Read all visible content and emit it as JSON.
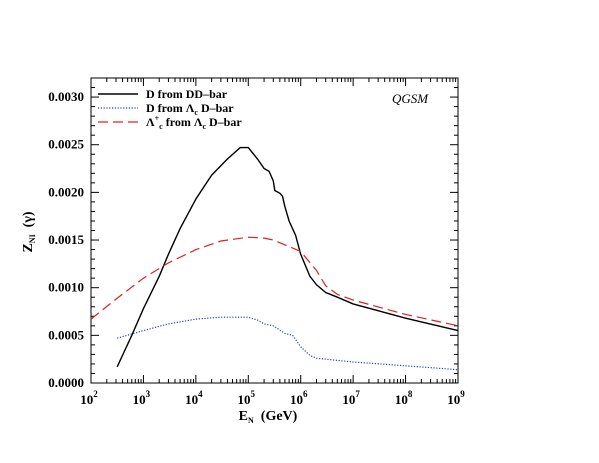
{
  "chart_data": {
    "type": "line",
    "xscale": "log",
    "xlim": [
      100,
      1000000000
    ],
    "ylim": [
      0,
      0.0032
    ],
    "xticks": [
      {
        "value": 100,
        "base": "10",
        "exp": "2"
      },
      {
        "value": 1000,
        "base": "10",
        "exp": "3"
      },
      {
        "value": 10000,
        "base": "10",
        "exp": "4"
      },
      {
        "value": 100000,
        "base": "10",
        "exp": "5"
      },
      {
        "value": 1000000,
        "base": "10",
        "exp": "6"
      },
      {
        "value": 10000000,
        "base": "10",
        "exp": "7"
      },
      {
        "value": 100000000,
        "base": "10",
        "exp": "8"
      },
      {
        "value": 1000000000,
        "base": "10",
        "exp": "9"
      }
    ],
    "yticks": [
      {
        "value": 0.0,
        "label": "0.0000"
      },
      {
        "value": 0.0005,
        "label": "0.0005"
      },
      {
        "value": 0.001,
        "label": "0.0010"
      },
      {
        "value": 0.0015,
        "label": "0.0015"
      },
      {
        "value": 0.002,
        "label": "0.0020"
      },
      {
        "value": 0.0025,
        "label": "0.0025"
      },
      {
        "value": 0.003,
        "label": "0.0030"
      }
    ],
    "xlabel": {
      "main": "E",
      "sub": "N",
      "rest": "  (GeV)"
    },
    "ylabel": {
      "main": "Z",
      "sub": "NI",
      "rest": "  (γ)"
    },
    "annotation": "QGSM",
    "legend_position": "top-left",
    "series": [
      {
        "name": "D   from  DD–bar",
        "legend": [
          {
            "t": "D   from  DD–bar"
          }
        ],
        "color": "#000000",
        "dash": "",
        "points": [
          [
            316,
            0.00017
          ],
          [
            600,
            0.0005
          ],
          [
            1000,
            0.00078
          ],
          [
            2000,
            0.00112
          ],
          [
            3000,
            0.00135
          ],
          [
            5000,
            0.00162
          ],
          [
            10000,
            0.00193
          ],
          [
            20000,
            0.00218
          ],
          [
            40000,
            0.00235
          ],
          [
            70000,
            0.00247
          ],
          [
            100000,
            0.00247
          ],
          [
            150000,
            0.00235
          ],
          [
            200000,
            0.00225
          ],
          [
            250000,
            0.00222
          ],
          [
            300000,
            0.00212
          ],
          [
            320000,
            0.00202
          ],
          [
            400000,
            0.00199
          ],
          [
            450000,
            0.00196
          ],
          [
            500000,
            0.00185
          ],
          [
            600000,
            0.0017
          ],
          [
            800000,
            0.00155
          ],
          [
            1000000,
            0.00135
          ],
          [
            1500000,
            0.00112
          ],
          [
            2000000,
            0.00103
          ],
          [
            3000000,
            0.00095
          ],
          [
            5000000,
            0.0009
          ],
          [
            10000000,
            0.00083
          ],
          [
            100000000,
            0.00068
          ],
          [
            1000000000,
            0.00055
          ]
        ]
      },
      {
        "name": "D   from  Λ c D–bar",
        "legend": [
          {
            "t": "D   from  Λ"
          },
          {
            "t": "c",
            "sub": true
          },
          {
            "t": " D–bar"
          }
        ],
        "color": "#1f3fd0",
        "dash": "1.2,1.6",
        "points": [
          [
            316,
            0.00047
          ],
          [
            1000,
            0.00055
          ],
          [
            3000,
            0.00062
          ],
          [
            10000,
            0.00067
          ],
          [
            30000,
            0.00069
          ],
          [
            100000,
            0.00069
          ],
          [
            150000,
            0.00066
          ],
          [
            200000,
            0.00062
          ],
          [
            300000,
            0.0006
          ],
          [
            500000,
            0.00052
          ],
          [
            700000,
            0.0005
          ],
          [
            1000000,
            0.00038
          ],
          [
            1500000,
            0.00029
          ],
          [
            2000000,
            0.00026
          ],
          [
            3000000,
            0.00025
          ],
          [
            10000000,
            0.00022
          ],
          [
            100000000,
            0.00018
          ],
          [
            1000000000,
            0.00014
          ]
        ]
      },
      {
        "name": "Λ + c from  Λ c D–bar",
        "legend": [
          {
            "t": "Λ"
          },
          {
            "t": "+",
            "sup": true
          },
          {
            "t": "c",
            "sub": true
          },
          {
            "t": " from  Λ"
          },
          {
            "t": "c",
            "sub": true
          },
          {
            "t": " D–bar"
          }
        ],
        "color": "#e02020",
        "dash": "10,5",
        "points": [
          [
            100,
            0.00067
          ],
          [
            300,
            0.00088
          ],
          [
            1000,
            0.0011
          ],
          [
            3000,
            0.00126
          ],
          [
            10000,
            0.0014
          ],
          [
            30000,
            0.00149
          ],
          [
            100000,
            0.00153
          ],
          [
            200000,
            0.00152
          ],
          [
            300000,
            0.0015
          ],
          [
            1000000,
            0.00138
          ],
          [
            2000000,
            0.00118
          ],
          [
            3000000,
            0.00102
          ],
          [
            5000000,
            0.00093
          ],
          [
            10000000,
            0.00087
          ],
          [
            100000000,
            0.00072
          ],
          [
            1000000000,
            0.0006
          ]
        ]
      }
    ]
  },
  "colors": {
    "annotation": "#1f3fd0",
    "axis": "#000000"
  }
}
